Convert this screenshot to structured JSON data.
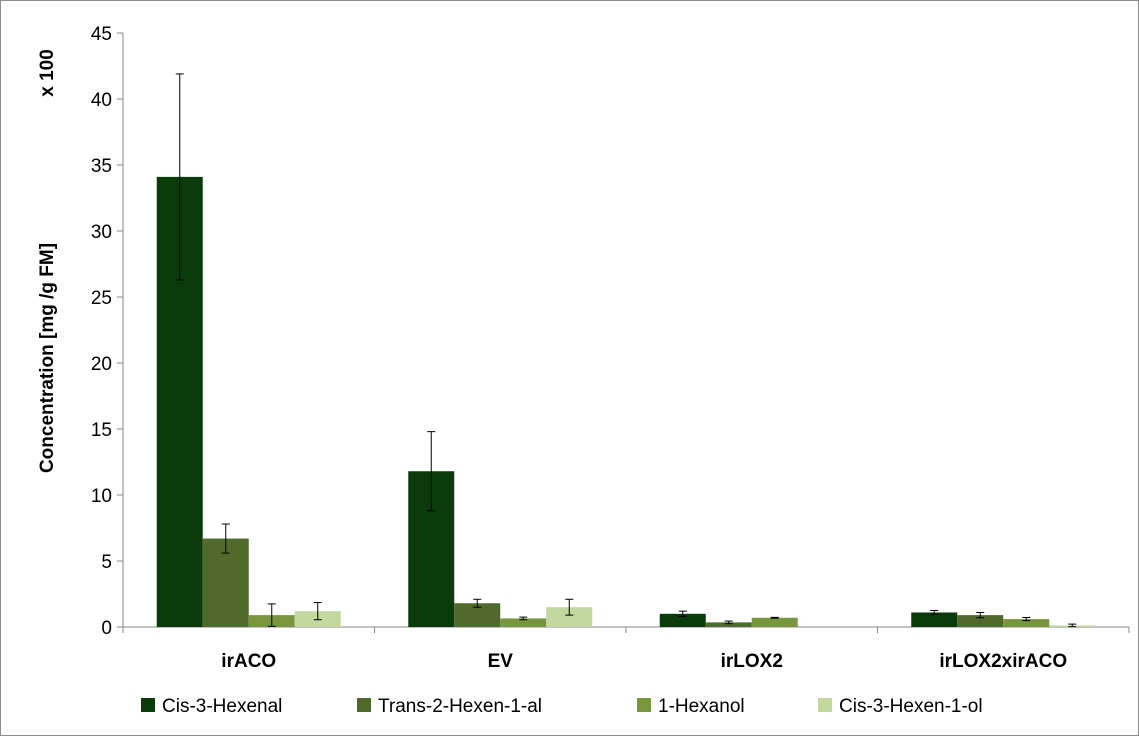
{
  "chart_data": {
    "type": "bar",
    "title": "",
    "xlabel": "",
    "ylabel": "Concentration [mg /g FM]",
    "y_multiplier_label": "x 100",
    "ylim": [
      0,
      45
    ],
    "y_ticks": [
      0,
      5,
      10,
      15,
      20,
      25,
      30,
      35,
      40,
      45
    ],
    "grid": false,
    "legend_position": "bottom",
    "categories": [
      "irACO",
      "EV",
      "irLOX2",
      "irLOX2xirACO"
    ],
    "series": [
      {
        "name": "Cis-3-Hexenal",
        "color": "#0b3a0b",
        "values": [
          34.1,
          11.8,
          1.0,
          1.1
        ],
        "errors": [
          7.8,
          3.0,
          0.2,
          0.15
        ]
      },
      {
        "name": "Trans-2-Hexen-1-al",
        "color": "#4f6a2a",
        "values": [
          6.7,
          1.8,
          0.35,
          0.9
        ],
        "errors": [
          1.1,
          0.3,
          0.1,
          0.2
        ]
      },
      {
        "name": "1-Hexanol",
        "color": "#77963e",
        "values": [
          0.9,
          0.65,
          0.7,
          0.6
        ],
        "errors": [
          0.85,
          0.1,
          0.03,
          0.12
        ]
      },
      {
        "name": "Cis-3-Hexen-1-ol",
        "color": "#c3d89e",
        "values": [
          1.2,
          1.5,
          0.0,
          0.12
        ],
        "errors": [
          0.65,
          0.6,
          0.0,
          0.1
        ]
      }
    ]
  }
}
